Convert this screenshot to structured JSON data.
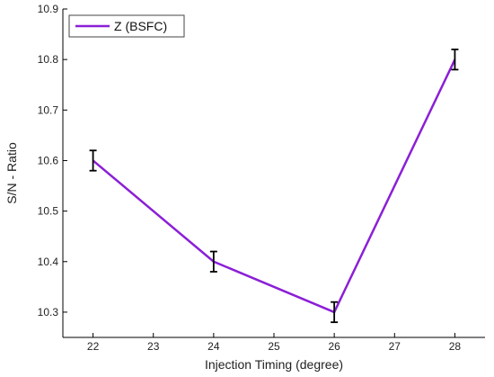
{
  "chart_data": {
    "type": "line",
    "xlabel": "Injection Timing (degree)",
    "ylabel": "S/N - Ratio",
    "xlim": [
      21.5,
      28.5
    ],
    "ylim": [
      10.25,
      10.9
    ],
    "x_ticks": [
      "22",
      "23",
      "24",
      "25",
      "26",
      "27",
      "28"
    ],
    "y_ticks": [
      "10.3",
      "10.4",
      "10.5",
      "10.6",
      "10.7",
      "10.8",
      "10.9"
    ],
    "grid": false,
    "legend_position": "top-left",
    "series": [
      {
        "name": "Z (BSFC)",
        "color": "#8B1FD6",
        "x": [
          22,
          24,
          26,
          28
        ],
        "y": [
          10.6,
          10.4,
          10.3,
          10.8
        ],
        "error": [
          0.02,
          0.02,
          0.02,
          0.02
        ]
      }
    ]
  }
}
